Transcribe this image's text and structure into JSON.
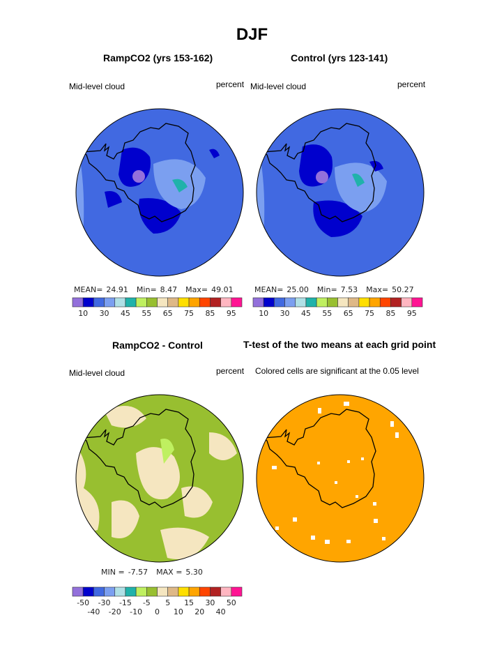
{
  "title": "DJF",
  "panels": [
    {
      "title": "RampCO2 (yrs 153-162)",
      "left_label": "Mid-level cloud",
      "right_label": "percent",
      "stats": {
        "mean_label": "MEAN=",
        "mean": "24.91",
        "min_label": "Min=",
        "min": "8.47",
        "max_label": "Max=",
        "max": "49.01"
      }
    },
    {
      "title": "Control (yrs 123-141)",
      "left_label": "Mid-level cloud",
      "right_label": "percent",
      "stats": {
        "mean_label": "MEAN=",
        "mean": "25.00",
        "min_label": "Min=",
        "min": "7.53",
        "max_label": "Max=",
        "max": "50.27"
      }
    },
    {
      "title": "RampCO2 - Control",
      "left_label": "Mid-level cloud",
      "right_label": "percent",
      "stats": {
        "min_label": "MIN =",
        "min": "-7.57",
        "max_label": "MAX =",
        "max": "5.30"
      }
    },
    {
      "title": "T-test of the two means at each grid point",
      "left_label": "Colored cells are significant at the 0.05 level"
    }
  ],
  "colorbar": {
    "colors": [
      "#9370db",
      "#0000cd",
      "#4169e1",
      "#7b9ff0",
      "#b0e0e6",
      "#20b2aa",
      "#bff060",
      "#98bf30",
      "#f5e6c0",
      "#deb887",
      "#ffdf00",
      "#ffa500",
      "#ff4500",
      "#b22222",
      "#ffb6c1",
      "#ff1493"
    ],
    "labels_abs": [
      "10",
      "30",
      "45",
      "55",
      "65",
      "75",
      "85",
      "95"
    ],
    "labels_diff": [
      "-50",
      "-40",
      "-30",
      "-20",
      "-15",
      "-10",
      "-5",
      "0",
      "5",
      "10",
      "15",
      "20",
      "30",
      "40",
      "50"
    ]
  },
  "map_colors": {
    "ocean_mean": "#4169e1",
    "dark": "#0000cd",
    "light": "#7b9ff0",
    "diff_pos": "#98bf30",
    "diff_neg": "#f5e6c0",
    "significant": "#ffa500"
  }
}
